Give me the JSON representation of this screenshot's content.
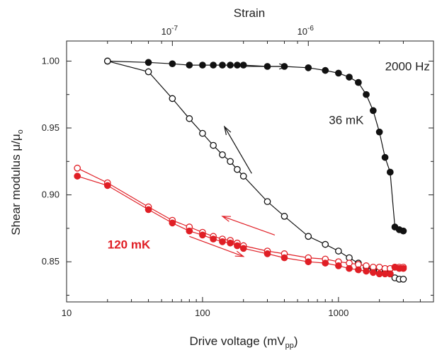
{
  "chart_data": {
    "type": "scatter",
    "xlabel": "Drive voltage (mV",
    "xlabel_sub": "pp",
    "xlabel_end": ")",
    "ylabel": "Shear modulus  μ/μ",
    "ylabel_sub": "o",
    "top_axis_label": "Strain",
    "x_scale": "log",
    "xlim": [
      10,
      5000
    ],
    "ylim": [
      0.82,
      1.015
    ],
    "x_ticks": [
      10,
      100,
      1000
    ],
    "x_tick_labels": [
      "10",
      "100",
      "1000"
    ],
    "y_ticks": [
      0.85,
      0.9,
      0.95,
      1.0
    ],
    "y_tick_labels": [
      "0.85",
      "0.90",
      "0.95",
      "1.00"
    ],
    "top_ticks": [
      {
        "x": 60,
        "base": "10",
        "exp": "-7"
      },
      {
        "x": 600,
        "base": "10",
        "exp": "-6"
      }
    ],
    "annotations": [
      {
        "text": "2000 Hz",
        "x": 2200,
        "y": 0.993,
        "color": "#222222"
      },
      {
        "text": "36 mK",
        "x": 850,
        "y": 0.953,
        "color": "#222222"
      },
      {
        "text": "120 mK",
        "x": 20,
        "y": 0.86,
        "color": "#e01e25"
      }
    ],
    "series": [
      {
        "color": "#111111",
        "marker": "filled",
        "x": [
          20,
          40,
          60,
          80,
          100,
          120,
          140,
          160,
          180,
          200,
          300,
          400,
          600,
          800,
          1000,
          1200,
          1400,
          1600,
          1800,
          2000,
          2200,
          2400,
          2600,
          2800,
          3000
        ],
        "y": [
          1.0,
          0.999,
          0.998,
          0.997,
          0.997,
          0.997,
          0.997,
          0.997,
          0.997,
          0.997,
          0.996,
          0.996,
          0.995,
          0.993,
          0.991,
          0.988,
          0.984,
          0.975,
          0.963,
          0.947,
          0.928,
          0.917,
          0.876,
          0.874,
          0.873
        ]
      },
      {
        "color": "#111111",
        "marker": "open",
        "x": [
          20,
          40,
          60,
          80,
          100,
          120,
          140,
          160,
          180,
          200,
          300,
          400,
          600,
          800,
          1000,
          1200,
          1400,
          1600,
          1800,
          2000,
          2200,
          2400,
          2600,
          2800,
          3000
        ],
        "y": [
          1.0,
          0.992,
          0.972,
          0.957,
          0.946,
          0.937,
          0.93,
          0.925,
          0.919,
          0.914,
          0.895,
          0.884,
          0.869,
          0.863,
          0.858,
          0.853,
          0.849,
          0.846,
          0.844,
          0.843,
          0.842,
          0.841,
          0.838,
          0.837,
          0.837
        ]
      },
      {
        "color": "#e01e25",
        "marker": "open",
        "x": [
          12,
          20,
          40,
          60,
          80,
          100,
          120,
          140,
          160,
          180,
          200,
          300,
          400,
          600,
          800,
          1000,
          1200,
          1400,
          1600,
          1800,
          2000,
          2200,
          2400,
          2600,
          2800,
          3000
        ],
        "y": [
          0.92,
          0.909,
          0.891,
          0.881,
          0.876,
          0.872,
          0.869,
          0.867,
          0.866,
          0.864,
          0.862,
          0.858,
          0.856,
          0.853,
          0.852,
          0.85,
          0.849,
          0.848,
          0.847,
          0.846,
          0.846,
          0.845,
          0.845,
          0.846,
          0.846,
          0.846
        ]
      },
      {
        "color": "#e01e25",
        "marker": "filled",
        "x": [
          12,
          20,
          40,
          60,
          80,
          100,
          120,
          140,
          160,
          180,
          200,
          300,
          400,
          600,
          800,
          1000,
          1200,
          1400,
          1600,
          1800,
          2000,
          2200,
          2400,
          2600,
          2800,
          3000
        ],
        "y": [
          0.914,
          0.907,
          0.889,
          0.879,
          0.873,
          0.87,
          0.867,
          0.865,
          0.864,
          0.862,
          0.86,
          0.856,
          0.853,
          0.85,
          0.849,
          0.847,
          0.845,
          0.844,
          0.843,
          0.842,
          0.841,
          0.841,
          0.841,
          0.846,
          0.845,
          0.845
        ]
      }
    ],
    "arrows": [
      {
        "from": [
          200,
          0.996
        ],
        "to": [
          420,
          0.996
        ],
        "color": "#111111"
      },
      {
        "from": [
          230,
          0.916
        ],
        "to": [
          145,
          0.951
        ],
        "color": "#111111"
      },
      {
        "from": [
          340,
          0.87
        ],
        "to": [
          140,
          0.884
        ],
        "color": "#e01e25"
      },
      {
        "from": [
          80,
          0.869
        ],
        "to": [
          200,
          0.854
        ],
        "color": "#e01e25"
      }
    ]
  }
}
